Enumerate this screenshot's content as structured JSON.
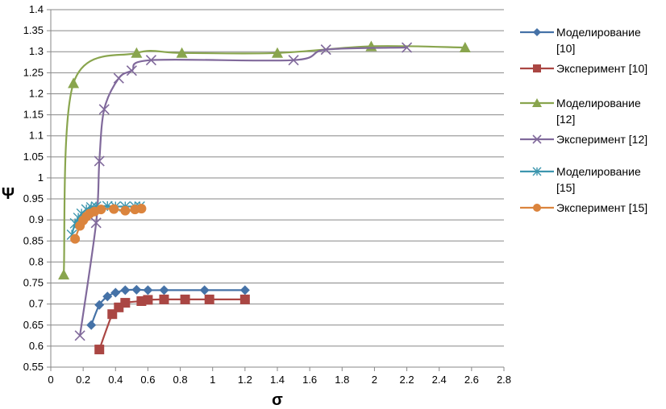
{
  "chart_data": {
    "type": "line",
    "title": "",
    "xlabel": "σ",
    "ylabel": "Ψ",
    "xlim": [
      0,
      2.8
    ],
    "ylim": [
      0.55,
      1.4
    ],
    "xticks": [
      "0",
      "0.2",
      "0.4",
      "0.6",
      "0.8",
      "1",
      "1.2",
      "1.4",
      "1.6",
      "1.8",
      "2",
      "2.2",
      "2.4",
      "2.6",
      "2.8"
    ],
    "yticks": [
      "0.55",
      "0.6",
      "0.65",
      "0.7",
      "0.75",
      "0.8",
      "0.85",
      "0.9",
      "0.95",
      "1",
      "1.05",
      "1.1",
      "1.15",
      "1.2",
      "1.25",
      "1.3",
      "1.35",
      "1.4"
    ],
    "grid": "horizontal",
    "legend_position": "right",
    "series": [
      {
        "name": "Моделирование [10]",
        "legend_lines": [
          "Моделирование",
          "[10]"
        ],
        "color": "#4572A7",
        "marker": "diamond",
        "points": [
          [
            0.25,
            0.65
          ],
          [
            0.3,
            0.698
          ],
          [
            0.35,
            0.718
          ],
          [
            0.4,
            0.727
          ],
          [
            0.46,
            0.733
          ],
          [
            0.53,
            0.734
          ],
          [
            0.6,
            0.733
          ],
          [
            0.7,
            0.733
          ],
          [
            0.95,
            0.733
          ],
          [
            1.2,
            0.733
          ]
        ]
      },
      {
        "name": "Эксперимент [10]",
        "legend_lines": [
          "Эксперимент [10]"
        ],
        "color": "#AA4643",
        "marker": "square",
        "points": [
          [
            0.3,
            0.592
          ],
          [
            0.38,
            0.676
          ],
          [
            0.42,
            0.692
          ],
          [
            0.46,
            0.703
          ],
          [
            0.56,
            0.707
          ],
          [
            0.6,
            0.71
          ],
          [
            0.7,
            0.711
          ],
          [
            0.83,
            0.711
          ],
          [
            0.98,
            0.711
          ],
          [
            1.2,
            0.711
          ]
        ]
      },
      {
        "name": "Моделирование [12]",
        "legend_lines": [
          "Моделирование",
          "[12]"
        ],
        "color": "#89A54E",
        "marker": "triangle",
        "points": [
          [
            0.08,
            0.77
          ],
          [
            0.14,
            1.225
          ],
          [
            0.53,
            1.297
          ],
          [
            0.81,
            1.297
          ],
          [
            1.4,
            1.297
          ],
          [
            1.98,
            1.313
          ],
          [
            2.56,
            1.31
          ]
        ]
      },
      {
        "name": "Эксперимент [12]",
        "legend_lines": [
          "Эксперимент [12]"
        ],
        "color": "#80699B",
        "marker": "x",
        "points": [
          [
            0.18,
            0.625
          ],
          [
            0.28,
            0.893
          ],
          [
            0.3,
            1.04
          ],
          [
            0.33,
            1.163
          ],
          [
            0.42,
            1.237
          ],
          [
            0.5,
            1.255
          ],
          [
            0.62,
            1.28
          ],
          [
            1.5,
            1.28
          ],
          [
            1.7,
            1.305
          ],
          [
            2.2,
            1.31
          ]
        ]
      },
      {
        "name": "Моделирование [15]",
        "legend_lines": [
          "Моделирование",
          "[15]"
        ],
        "color": "#3D96AE",
        "marker": "star",
        "points": [
          [
            0.13,
            0.865
          ],
          [
            0.15,
            0.892
          ],
          [
            0.17,
            0.905
          ],
          [
            0.19,
            0.915
          ],
          [
            0.22,
            0.925
          ],
          [
            0.25,
            0.93
          ],
          [
            0.28,
            0.932
          ],
          [
            0.35,
            0.933
          ],
          [
            0.4,
            0.932
          ],
          [
            0.46,
            0.932
          ],
          [
            0.52,
            0.932
          ],
          [
            0.55,
            0.932
          ]
        ]
      },
      {
        "name": "Эксперимент [15]",
        "legend_lines": [
          "Эксперимент [15]"
        ],
        "color": "#DB843D",
        "marker": "circle",
        "points": [
          [
            0.15,
            0.855
          ],
          [
            0.18,
            0.886
          ],
          [
            0.2,
            0.899
          ],
          [
            0.22,
            0.908
          ],
          [
            0.24,
            0.915
          ],
          [
            0.27,
            0.92
          ],
          [
            0.31,
            0.925
          ],
          [
            0.39,
            0.926
          ],
          [
            0.46,
            0.922
          ],
          [
            0.52,
            0.925
          ],
          [
            0.56,
            0.927
          ]
        ]
      }
    ]
  }
}
